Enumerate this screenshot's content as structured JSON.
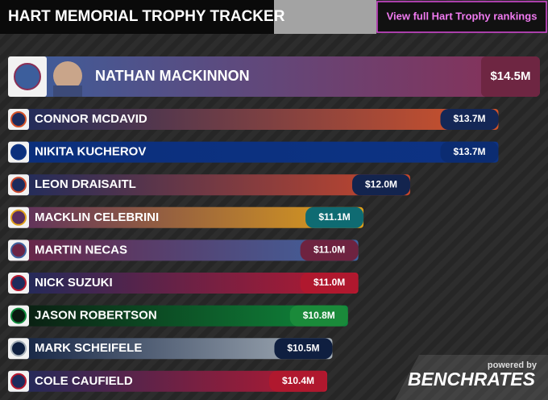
{
  "chart_data": {
    "type": "bar",
    "title": "HART MEMORIAL TROPHY TRACKER",
    "button": "View full Hart Trophy rankings",
    "footer": {
      "powered": "powered by",
      "brand": "BENCHRATES"
    },
    "categories": [
      "NATHAN MACKINNON",
      "CONNOR MCDAVID",
      "NIKITA KUCHEROV",
      "LEON DRAISAITL",
      "MACKLIN CELEBRINI",
      "MARTIN NECAS",
      "NICK SUZUKI",
      "JASON ROBERTSON",
      "MARK SCHEIFELE",
      "COLE CAUFIELD"
    ],
    "values": [
      14.5,
      13.7,
      13.7,
      12.0,
      11.1,
      11.0,
      11.0,
      10.8,
      10.5,
      10.4
    ],
    "value_labels": [
      "$14.5M",
      "$13.7M",
      "$13.7M",
      "$12.0M",
      "$11.1M",
      "$11.0M",
      "$11.0M",
      "$10.8M",
      "$10.5M",
      "$10.4M"
    ],
    "colors": [
      "#8a2f55",
      "#d4532a",
      "#0d3384",
      "#c9472b",
      "#e0a01a",
      "#3f63a0",
      "#b8182f",
      "#0f8a3c",
      "#a7b1ba",
      "#b8182f"
    ],
    "start_colors": [
      "#3c5e9c",
      "#1c2b5c",
      "#0b2f7c",
      "#1c2b5c",
      "#5a2d5e",
      "#6a2344",
      "#1c2b5c",
      "#0a1a10",
      "#102040",
      "#1c2b5c"
    ],
    "label_colors": [
      "#6e2642",
      "#142756",
      "#0b2c72",
      "#13244e",
      "#0f6b72",
      "#6e2340",
      "#b0182e",
      "#1a8a3a",
      "#0f1f40",
      "#b0182e"
    ]
  }
}
